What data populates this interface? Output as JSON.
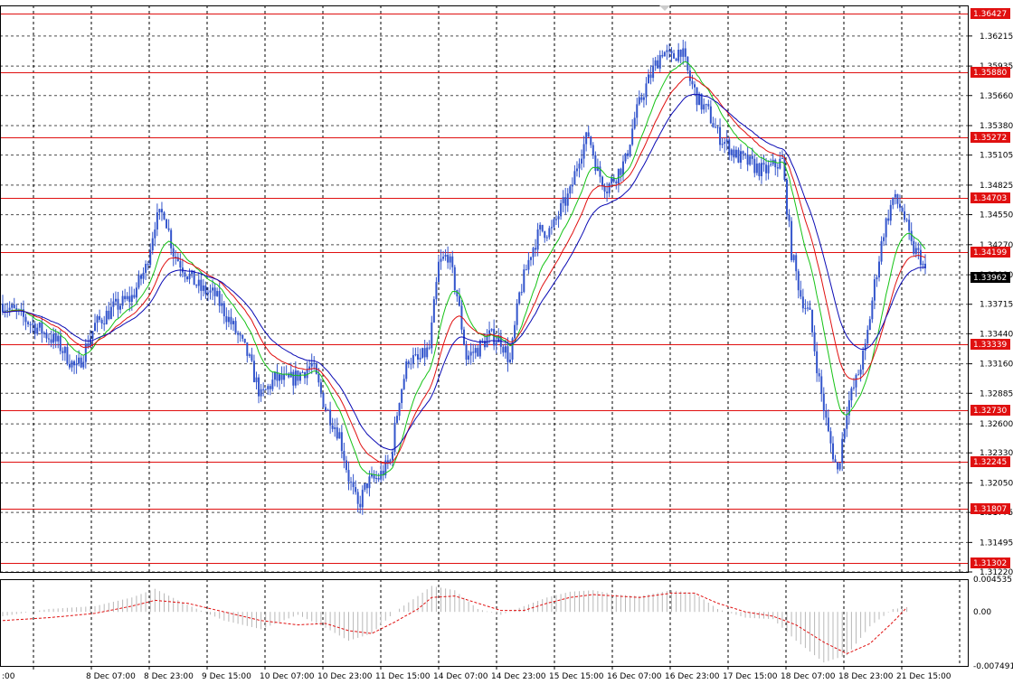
{
  "chart_data": [
    {
      "type": "candlestick",
      "title": "",
      "colors": {
        "candle": "#3355cc",
        "ma_fast": "#16c316",
        "ma_mid": "#e01010",
        "ma_slow": "#0a0ab4",
        "level": "#e01010",
        "grid": "#000000",
        "current_price_bg": "#000000"
      },
      "grid": true,
      "ylim": [
        1.3122,
        1.365
      ],
      "y_ticks": [
        "1.36215",
        "1.35935",
        "1.35660",
        "1.35380",
        "1.35105",
        "1.34825",
        "1.34550",
        "1.34270",
        "1.33990",
        "1.33715",
        "1.33440",
        "1.33160",
        "1.32885",
        "1.32600",
        "1.32330",
        "1.32050",
        "1.31775",
        "1.31495",
        "1.31220"
      ],
      "x_ticks": [
        "7 Dec 15:00",
        "8 Dec 07:00",
        "8 Dec 23:00",
        "9 Dec 15:00",
        "10 Dec 07:00",
        "10 Dec 23:00",
        "11 Dec 15:00",
        "14 Dec 07:00",
        "14 Dec 23:00",
        "15 Dec 15:00",
        "16 Dec 07:00",
        "16 Dec 23:00",
        "17 Dec 15:00",
        "18 Dec 07:00",
        "18 Dec 23:00",
        "21 Dec 15:00"
      ],
      "x_tick_labels_visible": [
        ":00",
        "8 Dec 07:00",
        "8 Dec 23:00",
        "9 Dec 15:00",
        "10 Dec 07:00",
        "10 Dec 23:00",
        "11 Dec 15:00",
        "14 Dec 07:00",
        "14 Dec 23:00",
        "15 Dec 15:00",
        "16 Dec 07:00",
        "16 Dec 23:00",
        "17 Dec 15:00",
        "18 Dec 07:00",
        "18 Dec 23:00",
        "21 Dec 15:00"
      ],
      "levels": [
        "1.36427",
        "1.35880",
        "1.35272",
        "1.34703",
        "1.34199",
        "1.33339",
        "1.32730",
        "1.32245",
        "1.31807",
        "1.31302"
      ],
      "current_price": "1.33962",
      "price_path": [
        [
          0,
          1.3372
        ],
        [
          8,
          1.336
        ],
        [
          16,
          1.3348
        ],
        [
          24,
          1.3335
        ],
        [
          32,
          1.331
        ],
        [
          40,
          1.3352
        ],
        [
          48,
          1.3368
        ],
        [
          56,
          1.3378
        ],
        [
          62,
          1.3405
        ],
        [
          66,
          1.3448
        ],
        [
          70,
          1.3458
        ],
        [
          74,
          1.342
        ],
        [
          80,
          1.34
        ],
        [
          86,
          1.3385
        ],
        [
          92,
          1.338
        ],
        [
          100,
          1.335
        ],
        [
          106,
          1.3325
        ],
        [
          112,
          1.3285
        ],
        [
          118,
          1.3302
        ],
        [
          124,
          1.33
        ],
        [
          128,
          1.3305
        ],
        [
          134,
          1.3315
        ],
        [
          140,
          1.3275
        ],
        [
          146,
          1.325
        ],
        [
          150,
          1.321
        ],
        [
          154,
          1.3182
        ],
        [
          158,
          1.3205
        ],
        [
          163,
          1.321
        ],
        [
          168,
          1.3225
        ],
        [
          172,
          1.3285
        ],
        [
          176,
          1.3322
        ],
        [
          180,
          1.3318
        ],
        [
          185,
          1.333
        ],
        [
          189,
          1.3408
        ],
        [
          193,
          1.3418
        ],
        [
          197,
          1.338
        ],
        [
          201,
          1.3322
        ],
        [
          206,
          1.333
        ],
        [
          211,
          1.3342
        ],
        [
          216,
          1.3338
        ],
        [
          220,
          1.3318
        ],
        [
          224,
          1.338
        ],
        [
          229,
          1.342
        ],
        [
          233,
          1.344
        ],
        [
          238,
          1.344
        ],
        [
          242,
          1.346
        ],
        [
          246,
          1.3475
        ],
        [
          250,
          1.351
        ],
        [
          254,
          1.353
        ],
        [
          258,
          1.3495
        ],
        [
          262,
          1.348
        ],
        [
          266,
          1.3492
        ],
        [
          270,
          1.3505
        ],
        [
          274,
          1.3545
        ],
        [
          278,
          1.357
        ],
        [
          282,
          1.359
        ],
        [
          286,
          1.3608
        ],
        [
          290,
          1.36
        ],
        [
          294,
          1.361
        ],
        [
          298,
          1.358
        ],
        [
          302,
          1.356
        ],
        [
          306,
          1.355
        ],
        [
          310,
          1.353
        ],
        [
          314,
          1.352
        ],
        [
          318,
          1.351
        ],
        [
          322,
          1.3505
        ],
        [
          326,
          1.35
        ],
        [
          330,
          1.3495
        ],
        [
          334,
          1.35
        ],
        [
          338,
          1.3505
        ],
        [
          342,
          1.342
        ],
        [
          346,
          1.338
        ],
        [
          350,
          1.336
        ],
        [
          354,
          1.33
        ],
        [
          358,
          1.325
        ],
        [
          362,
          1.3215
        ],
        [
          366,
          1.3275
        ],
        [
          370,
          1.33
        ],
        [
          374,
          1.333
        ],
        [
          378,
          1.339
        ],
        [
          382,
          1.344
        ],
        [
          386,
          1.347
        ],
        [
          390,
          1.346
        ],
        [
          394,
          1.3425
        ],
        [
          398,
          1.3415
        ],
        [
          400,
          1.34
        ]
      ]
    },
    {
      "type": "histogram",
      "title": "",
      "colors": {
        "bars": "#b8b8b8",
        "signal": "#e01010"
      },
      "ylim": [
        -0.007491,
        0.004535
      ],
      "y_ticks": [
        "0.004535",
        "0.00",
        "-0.007491"
      ],
      "hist_path": [
        [
          0,
          -0.0006
        ],
        [
          20,
          0.0004
        ],
        [
          40,
          0.0008
        ],
        [
          56,
          0.002
        ],
        [
          66,
          0.0032
        ],
        [
          80,
          0.001
        ],
        [
          96,
          -0.0012
        ],
        [
          112,
          -0.0024
        ],
        [
          128,
          -0.0004
        ],
        [
          140,
          -0.0022
        ],
        [
          150,
          -0.004
        ],
        [
          160,
          -0.003
        ],
        [
          170,
          0.0
        ],
        [
          180,
          0.0022
        ],
        [
          186,
          0.0036
        ],
        [
          196,
          0.003
        ],
        [
          206,
          0.0004
        ],
        [
          216,
          -0.0004
        ],
        [
          226,
          0.0008
        ],
        [
          236,
          0.002
        ],
        [
          246,
          0.0028
        ],
        [
          256,
          0.003
        ],
        [
          266,
          0.0024
        ],
        [
          276,
          0.0022
        ],
        [
          290,
          0.003
        ],
        [
          300,
          0.0026
        ],
        [
          310,
          0.0004
        ],
        [
          322,
          -0.0008
        ],
        [
          334,
          -0.001
        ],
        [
          344,
          -0.004
        ],
        [
          356,
          -0.007
        ],
        [
          366,
          -0.006
        ],
        [
          376,
          -0.002
        ],
        [
          386,
          0.0004
        ],
        [
          392,
          0.0006
        ]
      ],
      "signal_path": [
        [
          0,
          -0.0012
        ],
        [
          20,
          -0.0008
        ],
        [
          40,
          -0.0002
        ],
        [
          56,
          0.0008
        ],
        [
          66,
          0.0016
        ],
        [
          80,
          0.0012
        ],
        [
          96,
          0.0
        ],
        [
          112,
          -0.0012
        ],
        [
          128,
          -0.0018
        ],
        [
          140,
          -0.0016
        ],
        [
          150,
          -0.0026
        ],
        [
          160,
          -0.003
        ],
        [
          170,
          -0.0014
        ],
        [
          180,
          0.0004
        ],
        [
          186,
          0.002
        ],
        [
          196,
          0.0022
        ],
        [
          206,
          0.0012
        ],
        [
          216,
          0.0002
        ],
        [
          226,
          0.0002
        ],
        [
          236,
          0.0012
        ],
        [
          246,
          0.002
        ],
        [
          256,
          0.0024
        ],
        [
          266,
          0.0022
        ],
        [
          276,
          0.002
        ],
        [
          290,
          0.0026
        ],
        [
          300,
          0.0026
        ],
        [
          310,
          0.0012
        ],
        [
          322,
          0.0
        ],
        [
          334,
          -0.0006
        ],
        [
          344,
          -0.0018
        ],
        [
          356,
          -0.0042
        ],
        [
          366,
          -0.0058
        ],
        [
          376,
          -0.0044
        ],
        [
          386,
          -0.0014
        ],
        [
          392,
          0.0006
        ]
      ]
    }
  ]
}
